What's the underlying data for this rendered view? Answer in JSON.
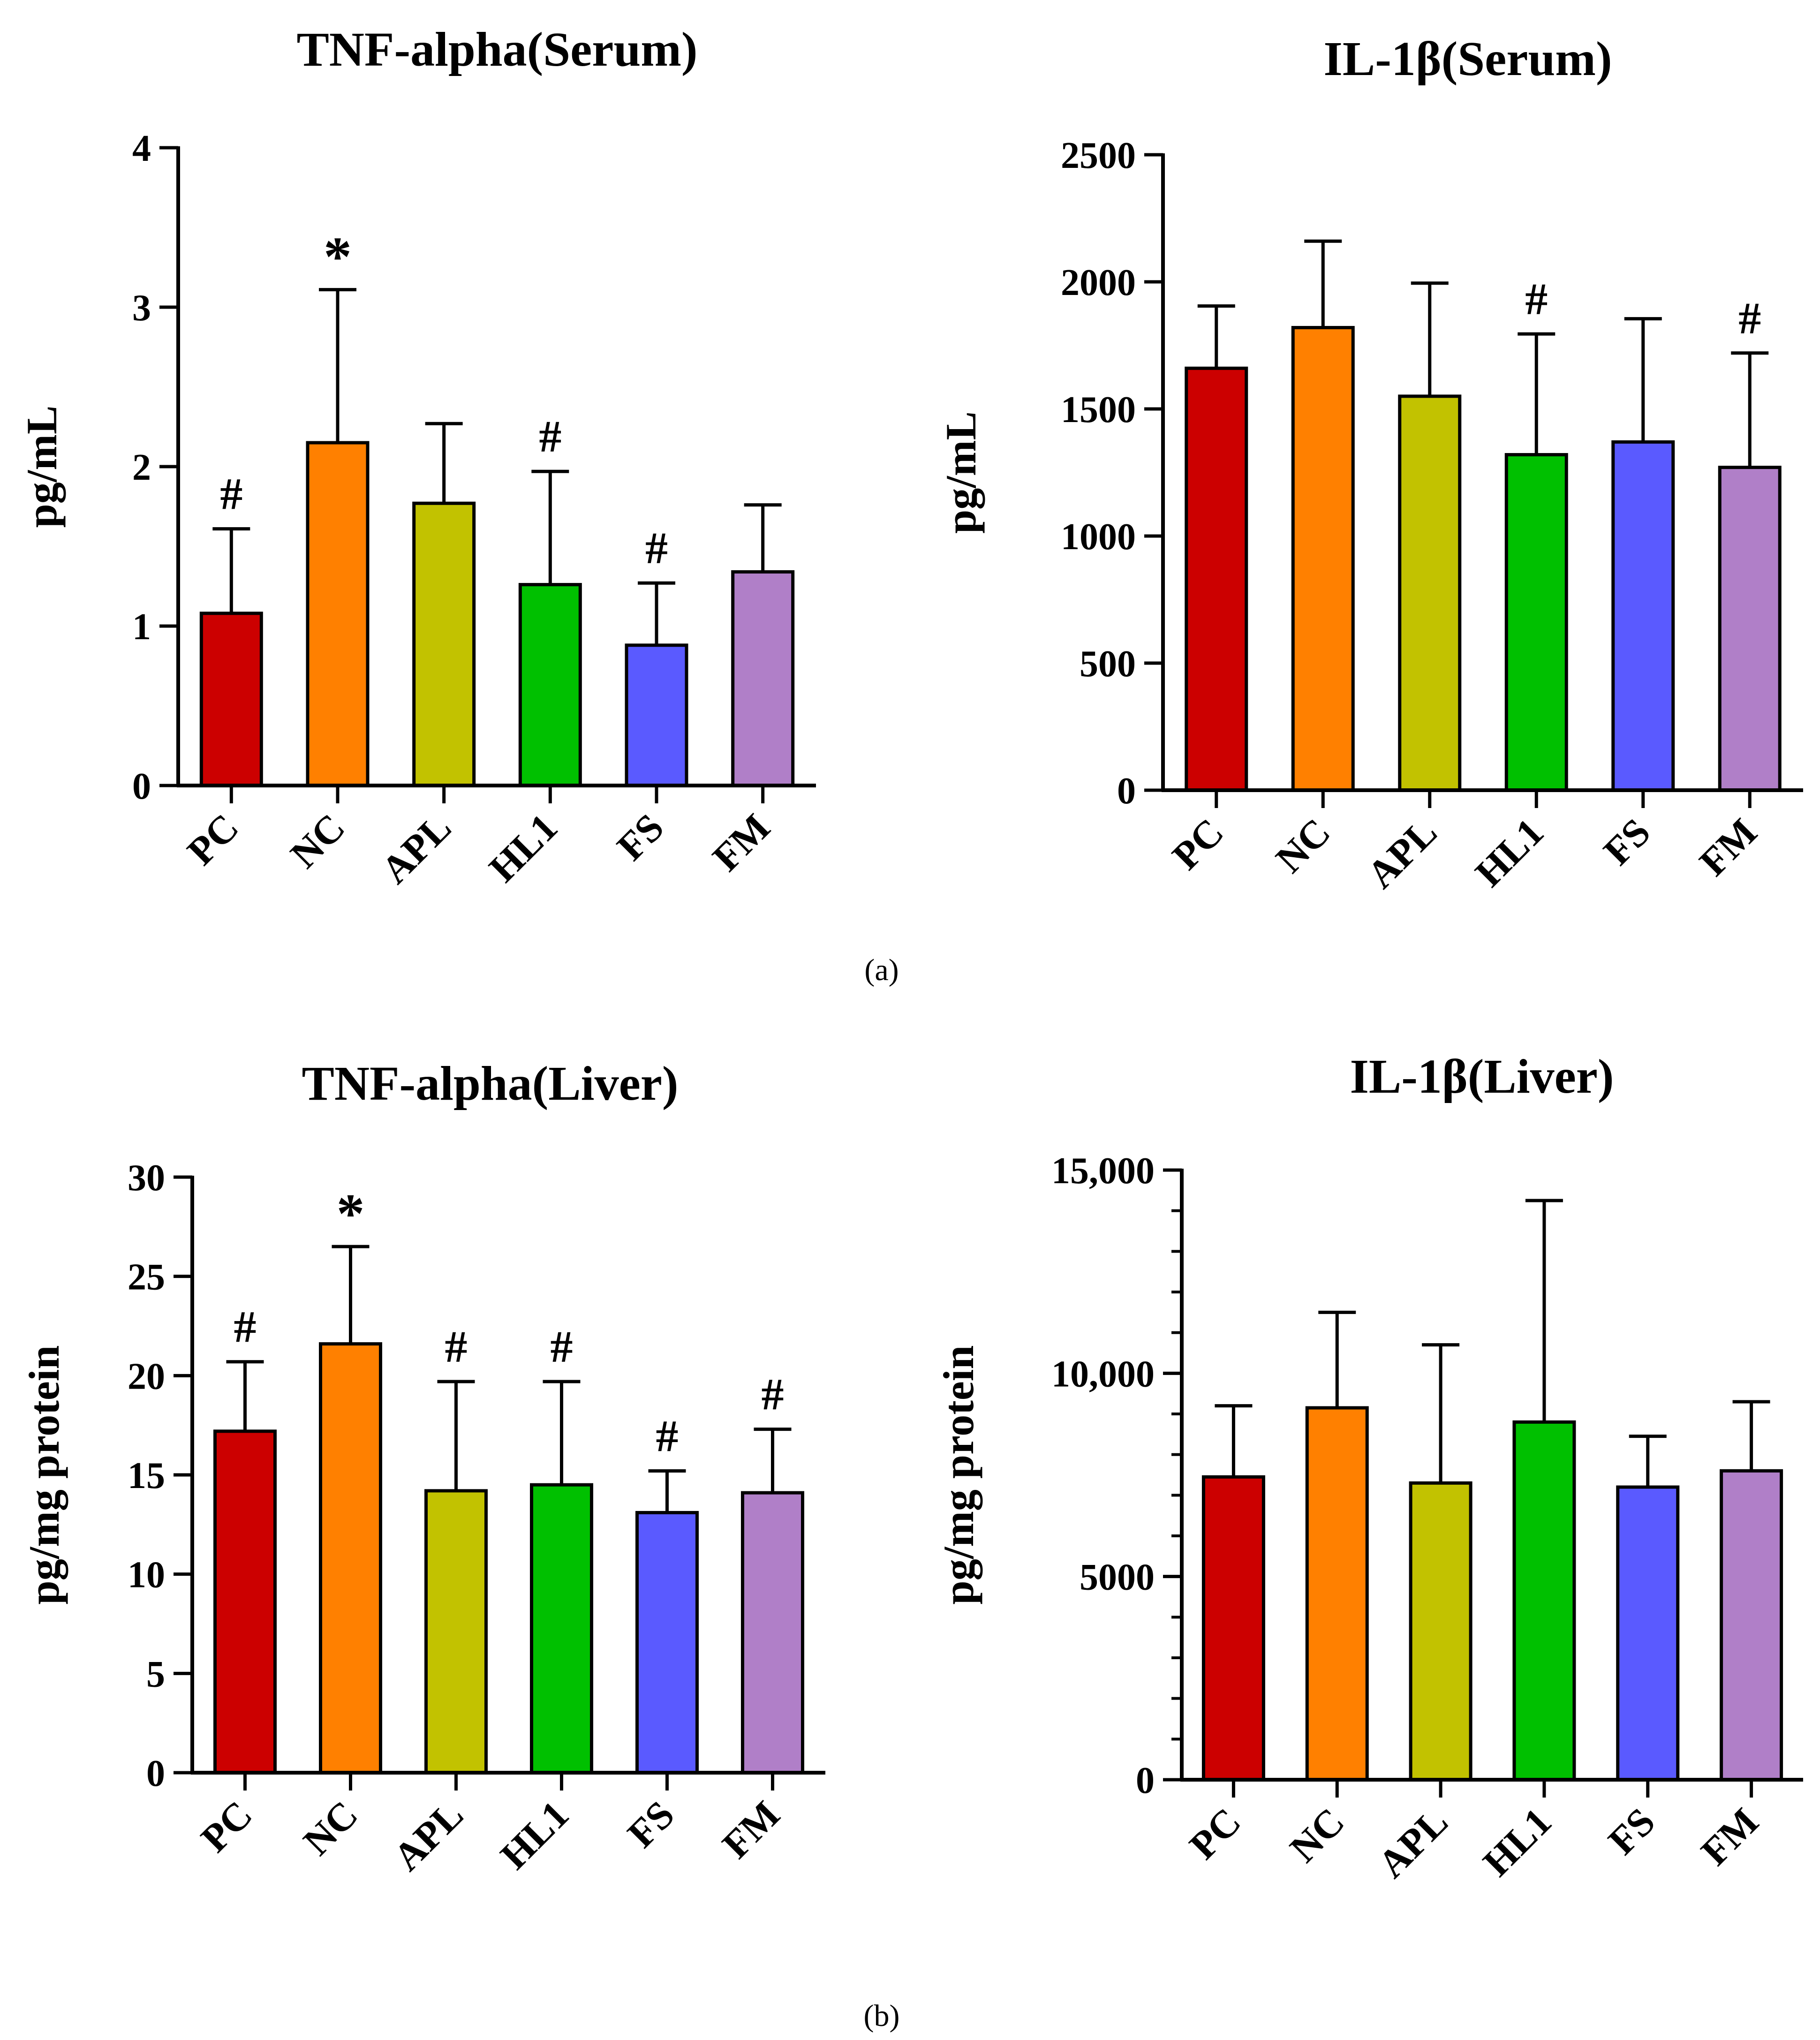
{
  "panel_labels": {
    "a": "(a)",
    "b": "(b)"
  },
  "colors": [
    "#cc0000",
    "#ff8000",
    "#c2c200",
    "#00c000",
    "#5a5aff",
    "#b07fc8"
  ],
  "chart_data": [
    {
      "type": "bar",
      "title": "TNF-alpha(Serum)",
      "ylabel": "pg/mL",
      "xlabel": "",
      "ylim": [
        0,
        4
      ],
      "yticks": [
        0,
        1,
        2,
        3,
        4
      ],
      "ytick_labels": [
        "0",
        "1",
        "2",
        "3",
        "4"
      ],
      "minor_ticks": 0,
      "categories": [
        "PC",
        "NC",
        "APL",
        "HL1",
        "FS",
        "FM"
      ],
      "values": [
        1.08,
        2.15,
        1.77,
        1.26,
        0.88,
        1.34
      ],
      "errors": [
        0.53,
        0.96,
        0.5,
        0.71,
        0.39,
        0.42
      ],
      "annotations": [
        "#",
        "*",
        "",
        "#",
        "#",
        ""
      ]
    },
    {
      "type": "bar",
      "title": "IL-1β(Serum)",
      "ylabel": "pg/mL",
      "xlabel": "",
      "ylim": [
        0,
        2500
      ],
      "yticks": [
        0,
        500,
        1000,
        1500,
        2000,
        2500
      ],
      "ytick_labels": [
        "0",
        "500",
        "1000",
        "1500",
        "2000",
        "2500"
      ],
      "minor_ticks": 0,
      "categories": [
        "PC",
        "NC",
        "APL",
        "HL1",
        "FS",
        "FM"
      ],
      "values": [
        1660,
        1820,
        1550,
        1320,
        1370,
        1270
      ],
      "errors": [
        245,
        340,
        445,
        475,
        485,
        450
      ],
      "annotations": [
        "",
        "",
        "",
        "#",
        "",
        "#"
      ]
    },
    {
      "type": "bar",
      "title": "TNF-alpha(Liver)",
      "ylabel": "pg/mg protein",
      "xlabel": "",
      "ylim": [
        0,
        30
      ],
      "yticks": [
        0,
        5,
        10,
        15,
        20,
        25,
        30
      ],
      "ytick_labels": [
        "0",
        "5",
        "10",
        "15",
        "20",
        "25",
        "30"
      ],
      "minor_ticks": 0,
      "categories": [
        "PC",
        "NC",
        "APL",
        "HL1",
        "FS",
        "FM"
      ],
      "values": [
        17.2,
        21.6,
        14.2,
        14.5,
        13.1,
        14.1
      ],
      "errors": [
        3.5,
        4.9,
        5.5,
        5.2,
        2.1,
        3.2
      ],
      "annotations": [
        "#",
        "*",
        "#",
        "#",
        "#",
        "#"
      ]
    },
    {
      "type": "bar",
      "title": "IL-1β(Liver)",
      "ylabel": "pg/mg protein",
      "xlabel": "",
      "ylim": [
        0,
        15000
      ],
      "yticks": [
        0,
        5000,
        10000,
        15000
      ],
      "ytick_labels": [
        "0",
        "5000",
        "10,000",
        "15,000"
      ],
      "minor_ticks": 4,
      "categories": [
        "PC",
        "NC",
        "APL",
        "HL1",
        "FS",
        "FM"
      ],
      "values": [
        7450,
        9150,
        7300,
        8800,
        7200,
        7600
      ],
      "errors": [
        1750,
        2350,
        3400,
        5450,
        1250,
        1700
      ],
      "annotations": [
        "",
        "",
        "",
        "",
        "",
        ""
      ]
    }
  ]
}
